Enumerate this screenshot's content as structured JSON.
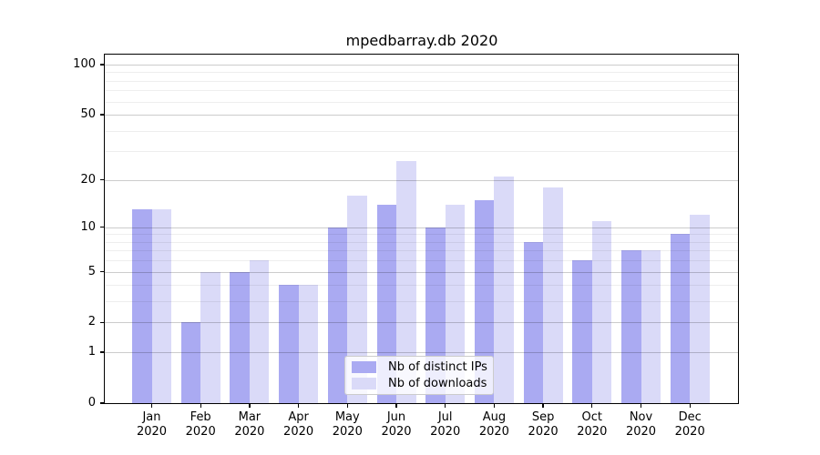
{
  "chart_data": {
    "type": "bar",
    "title": "mpedbarray.db 2020",
    "year_label": "2020",
    "categories": [
      "Jan",
      "Feb",
      "Mar",
      "Apr",
      "May",
      "Jun",
      "Jul",
      "Aug",
      "Sep",
      "Oct",
      "Nov",
      "Dec"
    ],
    "series": [
      {
        "name": "Nb of distinct IPs",
        "color": "#aaaaf2",
        "values": [
          13,
          2,
          5,
          4,
          10,
          14,
          10,
          15,
          8,
          6,
          7,
          9
        ]
      },
      {
        "name": "Nb of downloads",
        "color": "#dadaf8",
        "values": [
          13,
          5,
          6,
          4,
          16,
          26,
          14,
          21,
          18,
          11,
          7,
          12
        ]
      }
    ],
    "y_axis": {
      "scale": "log1p",
      "tick_values": [
        0,
        1,
        2,
        5,
        10,
        20,
        50,
        100
      ],
      "tick_labels": [
        "0",
        "1",
        "2",
        "5",
        "10",
        "20",
        "50",
        "100"
      ],
      "minor_gridline_values": [
        3,
        4,
        6,
        7,
        8,
        9,
        30,
        40,
        60,
        70,
        80,
        90
      ],
      "ylim": [
        0,
        115
      ],
      "grid": "on, drawn over bars"
    },
    "legend": {
      "position": "lower center, inside plot",
      "entries": [
        "Nb of distinct IPs",
        "Nb of downloads"
      ]
    }
  }
}
